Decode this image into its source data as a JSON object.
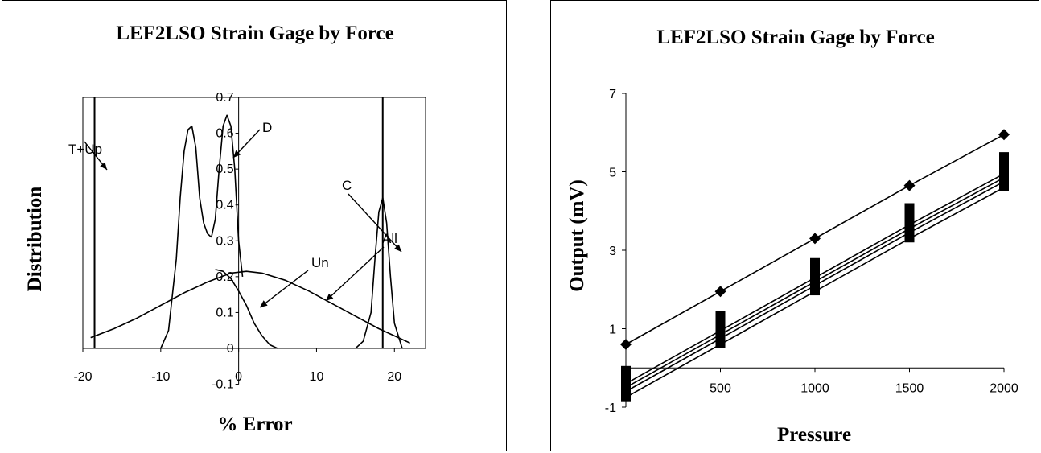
{
  "chart_data": [
    {
      "type": "line",
      "title": "LEF2LSO Strain Gage by Force",
      "xlabel": "% Error",
      "ylabel": "Distribution",
      "xlim": [
        -20,
        24
      ],
      "ylim": [
        -0.1,
        0.7
      ],
      "x_ticks": [
        "-20",
        "-10",
        "0",
        "10",
        "20"
      ],
      "y_ticks": [
        "0.7",
        "0.6",
        "0.5",
        "0.4",
        "0.3",
        "0.2",
        "0.1",
        "0",
        "-0.1"
      ],
      "vertical_lines": [
        -18.5,
        18.5
      ],
      "series": [
        {
          "name": "All",
          "x": [
            -19,
            -16,
            -13,
            -10,
            -7,
            -4,
            -1,
            1,
            3,
            6,
            9,
            12,
            15,
            18,
            20,
            22
          ],
          "y": [
            0.03,
            0.055,
            0.085,
            0.12,
            0.155,
            0.185,
            0.21,
            0.215,
            0.21,
            0.19,
            0.16,
            0.125,
            0.09,
            0.055,
            0.035,
            0.015
          ]
        },
        {
          "name": "Un",
          "x": [
            -3,
            -2,
            -1,
            0,
            1,
            2,
            3,
            4,
            5
          ],
          "y": [
            0.22,
            0.215,
            0.195,
            0.16,
            0.12,
            0.07,
            0.035,
            0.01,
            0
          ]
        },
        {
          "name": "T+Up",
          "x": [
            -10,
            -9,
            -8,
            -7.5,
            -7,
            -6.5,
            -6,
            -5.5,
            -5,
            -4.5,
            -4,
            -3.5
          ],
          "y": [
            0,
            0.05,
            0.25,
            0.42,
            0.55,
            0.61,
            0.62,
            0.56,
            0.42,
            0.35,
            0.32,
            0.31
          ]
        },
        {
          "name": "D",
          "x": [
            -3.5,
            -3,
            -2.5,
            -2,
            -1.5,
            -1,
            -0.5,
            0,
            0.5
          ],
          "y": [
            0.31,
            0.36,
            0.5,
            0.62,
            0.65,
            0.62,
            0.5,
            0.3,
            0.2
          ]
        },
        {
          "name": "C",
          "x": [
            15,
            16,
            17,
            17.5,
            18,
            18.5,
            19,
            19.5,
            20,
            21
          ],
          "y": [
            0,
            0.02,
            0.1,
            0.25,
            0.38,
            0.42,
            0.35,
            0.2,
            0.07,
            0
          ]
        }
      ],
      "annotations": [
        "T+Up",
        "D",
        "Un",
        "All",
        "C"
      ]
    },
    {
      "type": "line",
      "title": "LEF2LSO Strain Gage by Force",
      "xlabel": "Pressure",
      "ylabel": "Output (mV)",
      "xlim": [
        0,
        2000
      ],
      "ylim": [
        -1,
        7
      ],
      "x_ticks": [
        "500",
        "1000",
        "1500",
        "2000"
      ],
      "y_ticks": [
        "7",
        "5",
        "3",
        "1",
        "-1"
      ],
      "series": [
        {
          "x": [
            0,
            500,
            1000,
            1500,
            2000
          ],
          "y": [
            0.6,
            1.95,
            3.3,
            4.65,
            5.95
          ],
          "marker": "diamond"
        },
        {
          "x": [
            0,
            500,
            1000,
            1500,
            2000
          ],
          "y": [
            -0.4,
            0.95,
            2.3,
            3.65,
            4.95
          ],
          "marker": "none"
        },
        {
          "x": [
            0,
            500,
            1000,
            1500,
            2000
          ],
          "y": [
            -0.5,
            0.85,
            2.2,
            3.55,
            4.85
          ],
          "marker": "none"
        },
        {
          "x": [
            0,
            500,
            1000,
            1500,
            2000
          ],
          "y": [
            -0.6,
            0.75,
            2.1,
            3.45,
            4.75
          ],
          "marker": "none"
        },
        {
          "x": [
            0,
            500,
            1000,
            1500,
            2000
          ],
          "y": [
            -0.75,
            0.6,
            1.95,
            3.3,
            4.6
          ],
          "marker": "none"
        }
      ],
      "marker_bars": {
        "x": [
          0,
          500,
          1000,
          1500,
          2000
        ],
        "low": [
          -0.85,
          0.5,
          1.85,
          3.2,
          4.5
        ],
        "high": [
          0.05,
          1.45,
          2.8,
          4.2,
          5.5
        ]
      }
    }
  ]
}
